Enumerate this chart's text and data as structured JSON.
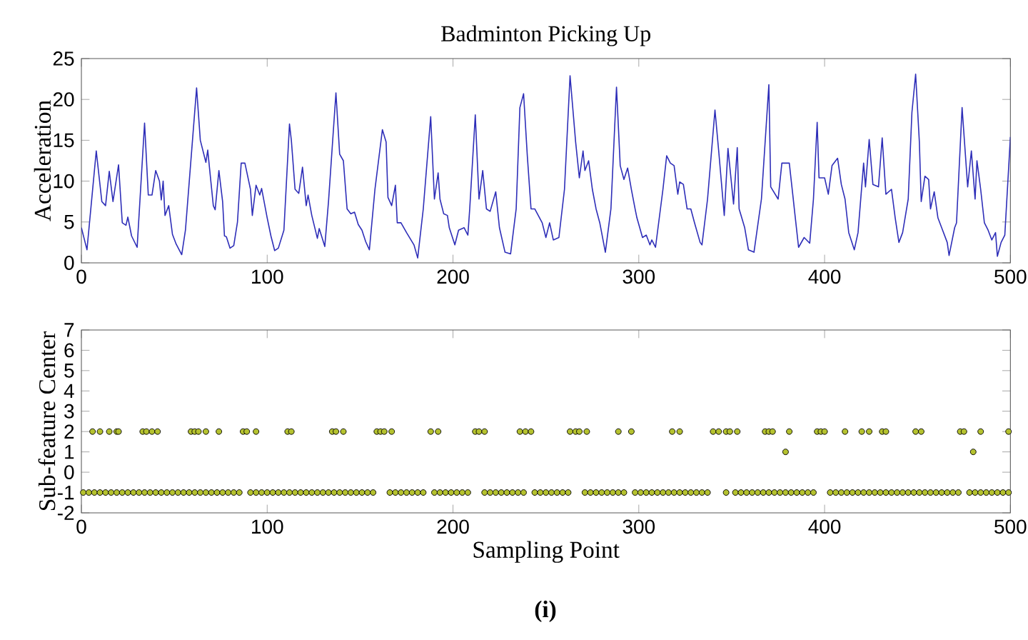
{
  "chart_data": [
    {
      "type": "line",
      "title": "Badminton Picking Up",
      "ylabel": "Acceleration",
      "color": "#2e2eb8",
      "x": [
        0,
        3,
        8,
        11,
        13,
        15,
        17,
        20,
        22,
        24,
        25,
        27,
        30,
        34,
        36,
        38,
        40,
        42,
        43,
        44,
        45,
        47,
        49,
        51,
        54,
        56,
        62,
        64,
        67,
        68,
        69,
        71,
        72,
        74,
        76,
        77,
        78,
        80,
        82,
        84,
        86,
        88,
        91,
        92,
        94,
        96,
        97,
        100,
        102,
        104,
        106,
        109,
        112,
        113,
        115,
        117,
        119,
        121,
        122,
        124,
        127,
        128,
        131,
        133,
        137,
        139,
        141,
        143,
        145,
        147,
        149,
        151,
        153,
        155,
        158,
        162,
        164,
        165,
        167,
        169,
        170,
        172,
        175,
        179,
        181,
        184,
        188,
        190,
        192,
        193,
        195,
        197,
        198,
        201,
        203,
        206,
        208,
        209,
        212,
        214,
        216,
        218,
        220,
        223,
        225,
        228,
        231,
        234,
        236,
        238,
        240,
        242,
        244,
        248,
        250,
        252,
        254,
        257,
        260,
        263,
        266,
        268,
        270,
        271,
        273,
        275,
        277,
        279,
        282,
        285,
        288,
        290,
        292,
        294,
        296,
        298,
        299,
        302,
        304,
        306,
        307,
        309,
        313,
        315,
        317,
        319,
        321,
        322,
        324,
        326,
        328,
        330,
        333,
        334,
        337,
        341,
        343,
        346,
        348,
        351,
        353,
        354,
        357,
        359,
        362,
        366,
        370,
        371,
        375,
        377,
        381,
        383,
        384,
        386,
        389,
        392,
        394,
        396,
        397,
        400,
        402,
        404,
        407,
        409,
        411,
        413,
        416,
        418,
        421,
        422,
        424,
        426,
        429,
        431,
        433,
        436,
        438,
        440,
        442,
        445,
        447,
        449,
        451,
        452,
        454,
        456,
        457,
        459,
        461,
        463,
        466,
        467,
        470,
        471,
        474,
        477,
        479,
        481,
        482,
        484,
        486,
        488,
        490,
        492,
        493,
        495,
        497,
        500
      ],
      "values": [
        4.3,
        1.6,
        13.7,
        7.5,
        7.0,
        11.2,
        7.5,
        12.0,
        4.9,
        4.6,
        5.6,
        3.3,
        1.9,
        17.1,
        8.3,
        8.3,
        11.3,
        10.0,
        7.7,
        10.0,
        5.8,
        7.0,
        3.5,
        2.3,
        1.0,
        4.0,
        21.4,
        15.0,
        12.3,
        13.8,
        11.5,
        7.0,
        6.5,
        11.3,
        7.5,
        3.3,
        3.2,
        1.8,
        2.1,
        5.0,
        12.2,
        12.2,
        9.0,
        5.8,
        9.5,
        8.3,
        9.1,
        5.5,
        3.3,
        1.5,
        1.8,
        4.0,
        17.0,
        15.0,
        9.0,
        8.5,
        11.7,
        7.0,
        8.3,
        5.8,
        3.0,
        4.2,
        2.0,
        7.5,
        20.8,
        13.3,
        12.5,
        6.6,
        6.0,
        6.2,
        4.7,
        4.0,
        2.6,
        1.6,
        9.0,
        16.3,
        14.8,
        8.0,
        7.0,
        9.5,
        4.9,
        4.9,
        3.7,
        2.2,
        0.6,
        6.6,
        17.9,
        7.8,
        11.0,
        7.8,
        6.0,
        5.8,
        4.3,
        2.2,
        4.0,
        4.3,
        3.4,
        6.6,
        18.1,
        7.8,
        11.3,
        6.6,
        6.3,
        8.7,
        4.3,
        1.3,
        1.1,
        6.6,
        19.0,
        20.7,
        13.1,
        6.6,
        6.6,
        4.9,
        3.1,
        4.9,
        2.8,
        3.1,
        9.0,
        22.9,
        14.8,
        10.4,
        13.7,
        11.3,
        12.5,
        9.0,
        6.6,
        4.9,
        1.3,
        6.6,
        21.5,
        11.9,
        10.2,
        11.6,
        9.0,
        6.6,
        5.5,
        3.1,
        3.4,
        2.2,
        2.8,
        1.9,
        9.0,
        13.1,
        12.2,
        11.9,
        8.4,
        9.9,
        9.6,
        6.6,
        6.6,
        4.9,
        2.5,
        2.2,
        7.8,
        18.7,
        13.7,
        5.8,
        14.0,
        7.2,
        14.1,
        6.6,
        4.3,
        1.6,
        1.3,
        7.8,
        21.8,
        9.3,
        7.8,
        12.2,
        12.2,
        8.1,
        6.0,
        1.9,
        3.1,
        2.4,
        7.8,
        17.2,
        10.4,
        10.4,
        8.4,
        11.9,
        12.8,
        9.6,
        7.8,
        3.7,
        1.6,
        3.7,
        12.2,
        9.3,
        15.1,
        9.6,
        9.3,
        15.3,
        8.4,
        9.0,
        5.5,
        2.5,
        3.7,
        7.8,
        18.4,
        23.1,
        14.8,
        7.5,
        10.6,
        10.2,
        6.6,
        8.7,
        5.5,
        4.3,
        2.5,
        0.9,
        4.3,
        4.9,
        19.0,
        9.3,
        13.7,
        7.8,
        12.5,
        9.0,
        4.9,
        4.0,
        2.8,
        3.7,
        0.8,
        2.5,
        3.4,
        15.4
      ],
      "xlim": [
        0,
        500
      ],
      "xticks": [
        0,
        100,
        200,
        300,
        400,
        500
      ],
      "ylim": [
        0,
        25
      ],
      "yticks": [
        0,
        5,
        10,
        15,
        20,
        25
      ]
    },
    {
      "type": "scatter",
      "ylabel": "Sub-feature Center",
      "xlabel": "Sampling Point",
      "color": "#b5c22f",
      "marker": "circle",
      "x": [
        1,
        4,
        7,
        10,
        13,
        16,
        19,
        22,
        25,
        28,
        31,
        34,
        37,
        40,
        43,
        46,
        49,
        52,
        55,
        58,
        61,
        64,
        67,
        70,
        73,
        76,
        79,
        82,
        85,
        91,
        94,
        97,
        100,
        103,
        106,
        109,
        112,
        115,
        118,
        121,
        124,
        127,
        130,
        133,
        136,
        139,
        142,
        145,
        148,
        151,
        154,
        157,
        166,
        169,
        172,
        175,
        178,
        181,
        184,
        190,
        193,
        196,
        199,
        202,
        205,
        208,
        217,
        220,
        223,
        226,
        229,
        232,
        235,
        238,
        244,
        247,
        250,
        253,
        256,
        259,
        262,
        271,
        274,
        277,
        280,
        283,
        286,
        289,
        292,
        298,
        301,
        304,
        307,
        310,
        313,
        316,
        319,
        322,
        325,
        328,
        331,
        334,
        337,
        347,
        352,
        355,
        358,
        361,
        364,
        367,
        370,
        373,
        376,
        379,
        382,
        385,
        388,
        391,
        394,
        403,
        406,
        409,
        412,
        415,
        418,
        421,
        424,
        427,
        430,
        433,
        436,
        439,
        442,
        445,
        448,
        451,
        454,
        457,
        460,
        463,
        466,
        469,
        472,
        478,
        481,
        484,
        487,
        490,
        493,
        496,
        499,
        6,
        10,
        15,
        19,
        20,
        33,
        35,
        38,
        41,
        59,
        61,
        63,
        67,
        74,
        87,
        89,
        94,
        111,
        113,
        135,
        137,
        141,
        159,
        161,
        163,
        167,
        188,
        192,
        212,
        214,
        217,
        236,
        239,
        242,
        263,
        266,
        268,
        272,
        289,
        296,
        318,
        322,
        340,
        343,
        347,
        349,
        353,
        368,
        370,
        372,
        381,
        396,
        398,
        400,
        411,
        420,
        424,
        431,
        433,
        449,
        452,
        473,
        475,
        484,
        499,
        379,
        480
      ],
      "values": [
        -1,
        -1,
        -1,
        -1,
        -1,
        -1,
        -1,
        -1,
        -1,
        -1,
        -1,
        -1,
        -1,
        -1,
        -1,
        -1,
        -1,
        -1,
        -1,
        -1,
        -1,
        -1,
        -1,
        -1,
        -1,
        -1,
        -1,
        -1,
        -1,
        -1,
        -1,
        -1,
        -1,
        -1,
        -1,
        -1,
        -1,
        -1,
        -1,
        -1,
        -1,
        -1,
        -1,
        -1,
        -1,
        -1,
        -1,
        -1,
        -1,
        -1,
        -1,
        -1,
        -1,
        -1,
        -1,
        -1,
        -1,
        -1,
        -1,
        -1,
        -1,
        -1,
        -1,
        -1,
        -1,
        -1,
        -1,
        -1,
        -1,
        -1,
        -1,
        -1,
        -1,
        -1,
        -1,
        -1,
        -1,
        -1,
        -1,
        -1,
        -1,
        -1,
        -1,
        -1,
        -1,
        -1,
        -1,
        -1,
        -1,
        -1,
        -1,
        -1,
        -1,
        -1,
        -1,
        -1,
        -1,
        -1,
        -1,
        -1,
        -1,
        -1,
        -1,
        -1,
        -1,
        -1,
        -1,
        -1,
        -1,
        -1,
        -1,
        -1,
        -1,
        -1,
        -1,
        -1,
        -1,
        -1,
        -1,
        -1,
        -1,
        -1,
        -1,
        -1,
        -1,
        -1,
        -1,
        -1,
        -1,
        -1,
        -1,
        -1,
        -1,
        -1,
        -1,
        -1,
        -1,
        -1,
        -1,
        -1,
        -1,
        -1,
        -1,
        -1,
        -1,
        -1,
        -1,
        -1,
        -1,
        -1,
        -1,
        2,
        2,
        2,
        2,
        2,
        2,
        2,
        2,
        2,
        2,
        2,
        2,
        2,
        2,
        2,
        2,
        2,
        2,
        2,
        2,
        2,
        2,
        2,
        2,
        2,
        2,
        2,
        2,
        2,
        2,
        2,
        2,
        2,
        2,
        2,
        2,
        2,
        2,
        2,
        2,
        2,
        2,
        2,
        2,
        2,
        2,
        2,
        2,
        2,
        2,
        2,
        2,
        2,
        2,
        2,
        2,
        2,
        2,
        2,
        2,
        2,
        2,
        2,
        2,
        2,
        1,
        1
      ],
      "xlim": [
        0,
        500
      ],
      "xticks": [
        0,
        100,
        200,
        300,
        400,
        500
      ],
      "ylim": [
        -2,
        7
      ],
      "yticks": [
        -2,
        -1,
        0,
        1,
        2,
        3,
        4,
        5,
        6,
        7
      ],
      "annotations": [
        "(i)"
      ]
    }
  ]
}
